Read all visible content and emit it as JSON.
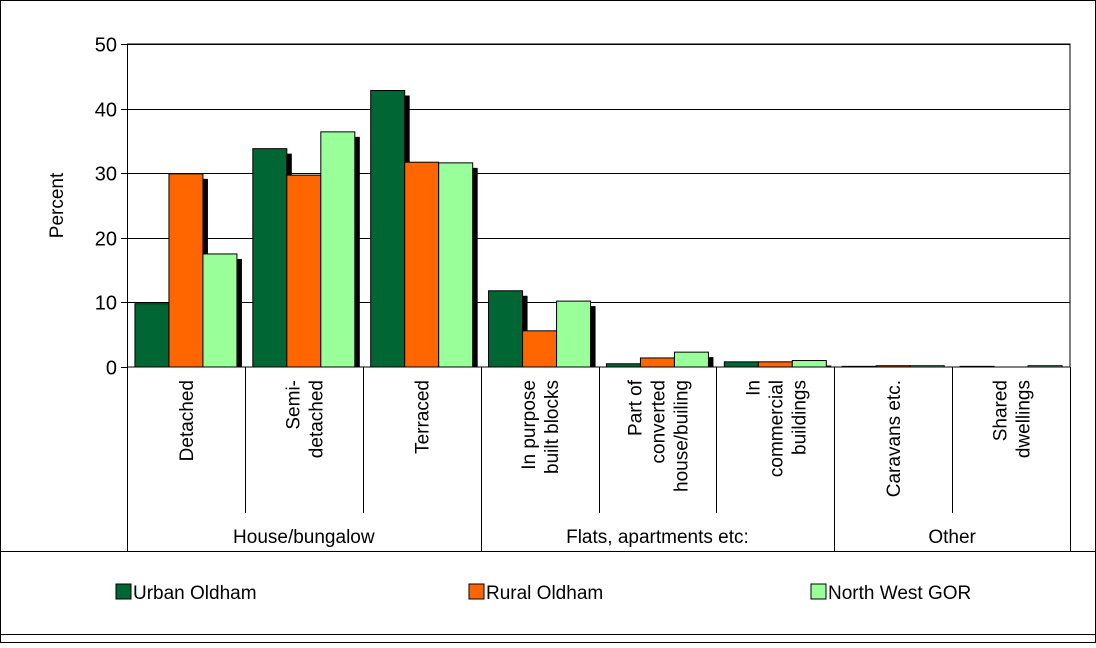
{
  "chart_data": {
    "type": "bar",
    "ylabel": "Percent",
    "ylim": [
      0,
      50
    ],
    "yticks": [
      0,
      10,
      20,
      30,
      40,
      50
    ],
    "grid": "horizontal",
    "legend_position": "bottom",
    "categories": [
      "Detached",
      "Semi-\ndetached",
      "Terraced",
      "In purpose\nbuilt blocks",
      "Part of\nconverted\nhouse/builing",
      "In\ncommercial\nbuildings",
      "Caravans etc.",
      "Shared\ndwellings"
    ],
    "groups": [
      {
        "label": "House/bungalow",
        "span": [
          0,
          2
        ]
      },
      {
        "label": "Flats, apartments etc:",
        "span": [
          3,
          5
        ]
      },
      {
        "label": "Other",
        "span": [
          6,
          7
        ]
      }
    ],
    "series": [
      {
        "name": "Urban Oldham",
        "color": "#006633",
        "values": [
          9.8,
          33.8,
          42.8,
          11.8,
          0.5,
          0.8,
          0.1,
          0.1
        ]
      },
      {
        "name": "Rural Oldham",
        "color": "#FF6600",
        "values": [
          29.9,
          29.7,
          31.7,
          5.6,
          1.4,
          0.8,
          0.2,
          0.0
        ]
      },
      {
        "name": "North West GOR",
        "color": "#99FF99",
        "values": [
          17.5,
          36.4,
          31.6,
          10.2,
          2.3,
          1.0,
          0.2,
          0.2
        ]
      }
    ]
  }
}
